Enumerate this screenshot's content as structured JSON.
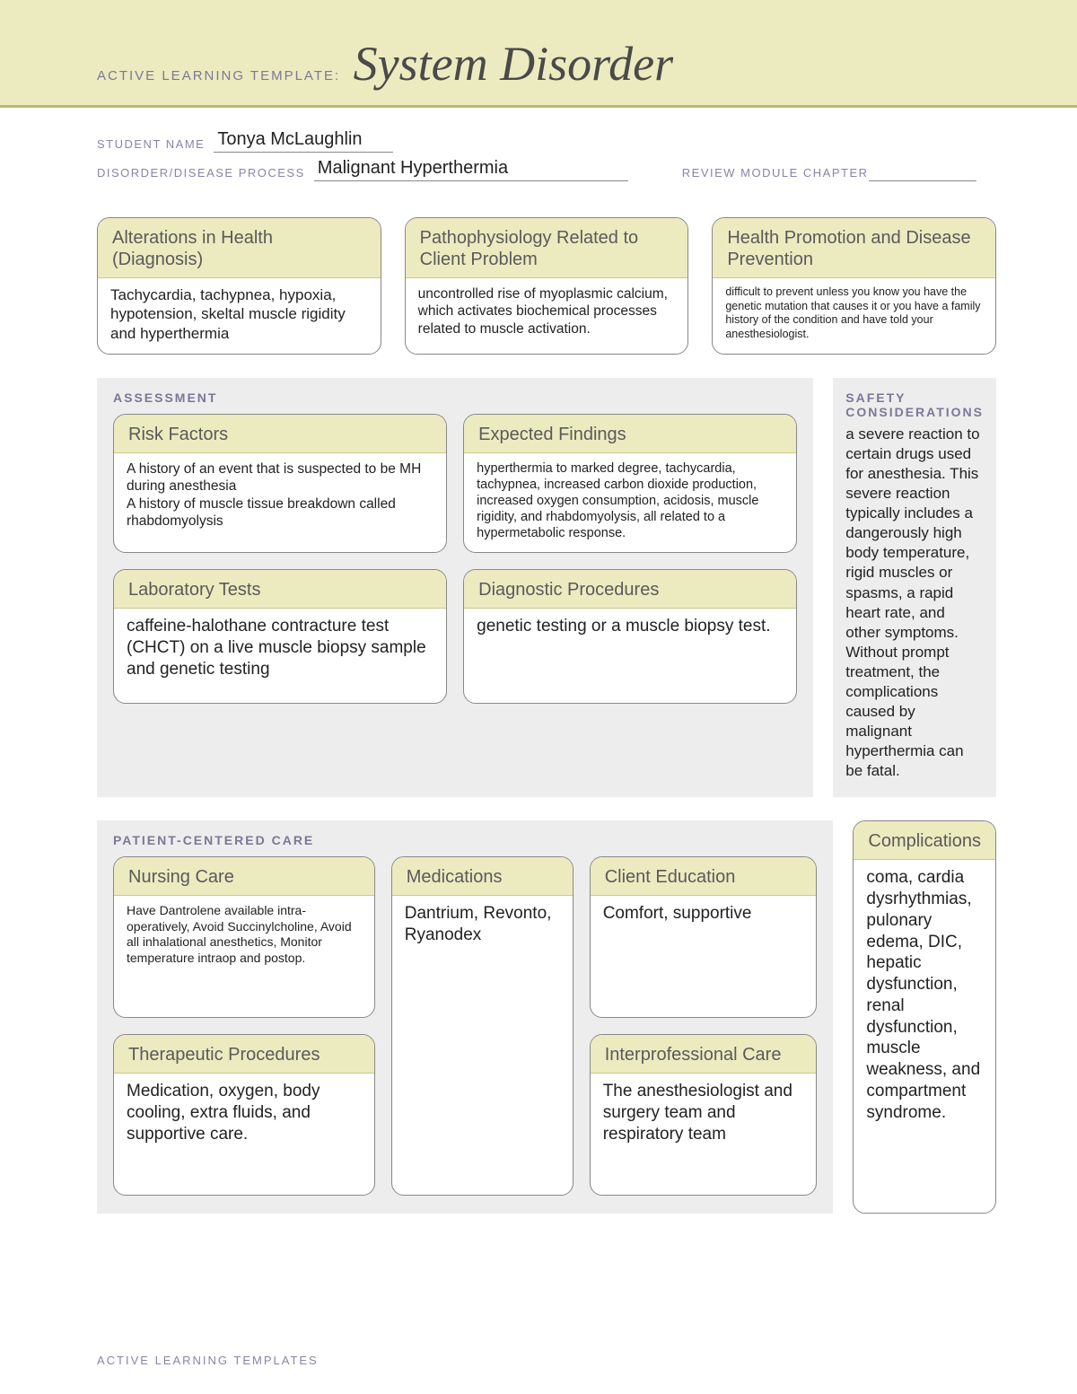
{
  "banner": {
    "prefix": "ACTIVE LEARNING TEMPLATE:",
    "title": "System Disorder"
  },
  "header": {
    "student_label": "STUDENT NAME",
    "student_value": "Tonya McLaughlin",
    "disorder_label": "DISORDER/DISEASE PROCESS",
    "disorder_value": "Malignant Hyperthermia",
    "review_label": "REVIEW MODULE CHAPTER",
    "review_value": ""
  },
  "top": {
    "alterations": {
      "title": "Alterations in Health (Diagnosis)",
      "body": "Tachycardia, tachypnea, hypoxia, hypotension, skeltal muscle rigidity and hyperthermia"
    },
    "pathophys": {
      "title": "Pathophysiology Related to Client Problem",
      "body": "uncontrolled rise of myoplasmic calcium, which activates biochemical processes related to muscle activation."
    },
    "promotion": {
      "title": "Health Promotion and Disease Prevention",
      "body": "difficult to prevent unless you know you have the genetic mutation that causes it or you have a family history of the condition and have told your anesthesiologist."
    }
  },
  "assessment": {
    "label": "ASSESSMENT",
    "risk": {
      "title": "Risk Factors",
      "body": "A history of an event that is suspected to be MH during anesthesia\nA history of muscle tissue breakdown called rhabdomyolysis"
    },
    "findings": {
      "title": "Expected Findings",
      "body": "hyperthermia to marked degree, tachycardia, tachypnea, increased carbon dioxide production, increased oxygen consumption, acidosis, muscle rigidity, and rhabdomyolysis, all related to a hypermetabolic response."
    },
    "labs": {
      "title": "Laboratory Tests",
      "body": "caffeine-halothane contracture test (CHCT) on a live muscle biopsy sample and genetic testing"
    },
    "diag": {
      "title": "Diagnostic Procedures",
      "body": "genetic testing or a muscle biopsy test."
    }
  },
  "safety": {
    "label": "SAFETY CONSIDERATIONS",
    "body": "a severe reaction to certain drugs used for anesthesia. This severe reaction typically includes a dangerously high body temperature, rigid muscles or spasms, a rapid heart rate, and other symptoms. Without prompt treatment, the complications caused by malignant hyperthermia can be fatal."
  },
  "pcc": {
    "label": "PATIENT-CENTERED CARE",
    "nursing": {
      "title": "Nursing Care",
      "body": "Have Dantrolene available intra-operatively, Avoid Succinylcholine, Avoid all inhalational anesthetics, Monitor temperature intraop and postop."
    },
    "meds": {
      "title": "Medications",
      "body": "Dantrium, Revonto, Ryanodex"
    },
    "edu": {
      "title": "Client Education",
      "body": "Comfort, supportive"
    },
    "therapeutic": {
      "title": "Therapeutic Procedures",
      "body": "Medication, oxygen, body cooling, extra fluids, and supportive care."
    },
    "inter": {
      "title": "Interprofessional Care",
      "body": "The anesthesiologist and surgery team and respiratory team"
    }
  },
  "complications": {
    "title": "Complications",
    "body": "coma, cardia dysrhythmias, pulonary edema, DIC, hepatic dysfunction, renal dysfunction, muscle weakness, and compartment syndrome."
  },
  "footer": "ACTIVE LEARNING TEMPLATES",
  "colors": {
    "banner_bg": "#ecebc0",
    "banner_underline": "#b8b86b",
    "section_bg": "#ededed",
    "card_border": "#888888",
    "label_color": "#7c7795"
  }
}
